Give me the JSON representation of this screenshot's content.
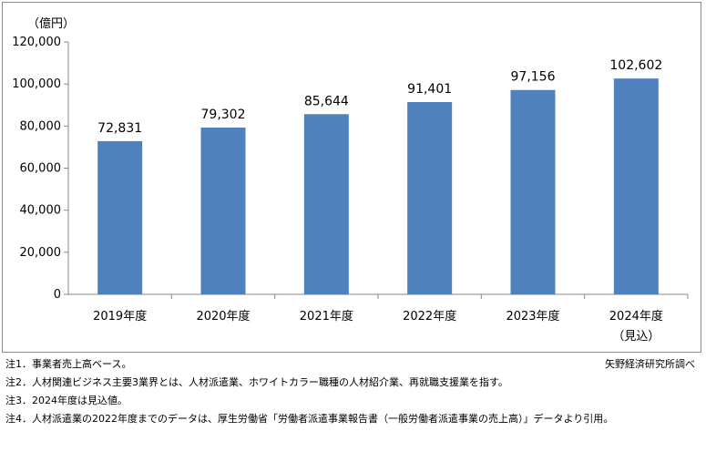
{
  "chart_data": {
    "type": "bar",
    "unit_label": "（億円）",
    "categories": [
      "2019年度",
      "2020年度",
      "2021年度",
      "2022年度",
      "2023年度",
      "2024年度"
    ],
    "category_sublabels": [
      "",
      "",
      "",
      "",
      "",
      "（見込）"
    ],
    "values": [
      72831,
      79302,
      85644,
      91401,
      97156,
      102602
    ],
    "value_labels": [
      "72,831",
      "79,302",
      "85,644",
      "91,401",
      "97,156",
      "102,602"
    ],
    "ylim": [
      0,
      120000
    ],
    "yticks": [
      "0",
      "20,000",
      "40,000",
      "60,000",
      "80,000",
      "100,000",
      "120,000"
    ],
    "grid": false,
    "bar_color": "#4f81bd"
  },
  "source": "矢野経済研究所調べ",
  "notes": [
    "注1．事業者売上高ベース。",
    "注2．人材関連ビジネス主要3業界とは、人材派遣業、ホワイトカラー職種の人材紹介業、再就職支援業を指す。",
    "注3．2024年度は見込値。",
    "注4．人材派遣業の2022年度までのデータは、厚生労働省「労働者派遣事業報告書（一般労働者派遣事業の売上高）」データより引用。"
  ]
}
